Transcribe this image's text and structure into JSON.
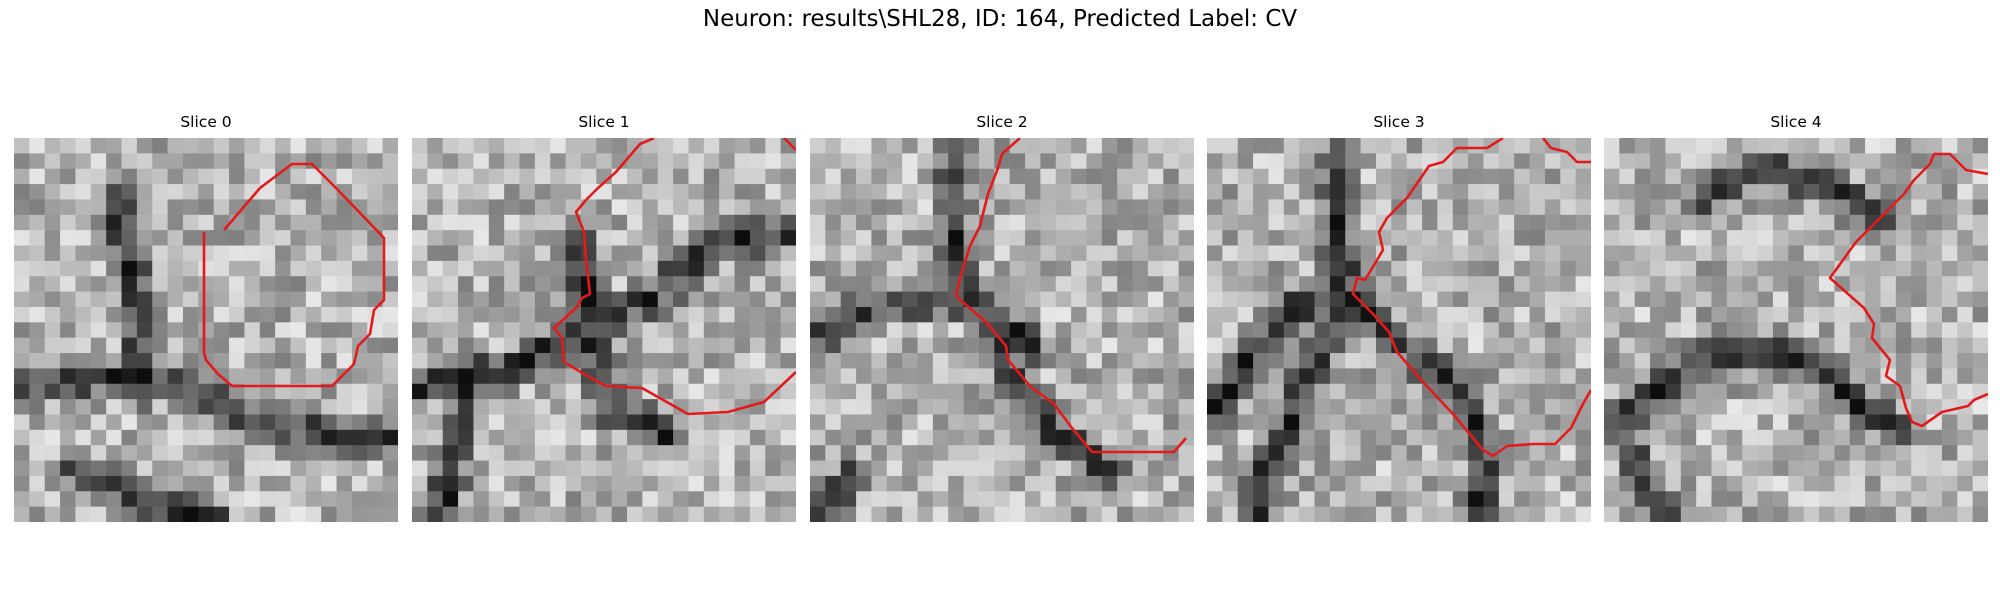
{
  "figure": {
    "suptitle": "Neuron: results\\SHL28, ID: 164, Predicted Label: CV",
    "contour_color": "#e31a1c",
    "colormap": "grayscale",
    "panels": [
      {
        "title": "Slice 0"
      },
      {
        "title": "Slice 1"
      },
      {
        "title": "Slice 2"
      },
      {
        "title": "Slice 3"
      },
      {
        "title": "Slice 4"
      }
    ]
  }
}
